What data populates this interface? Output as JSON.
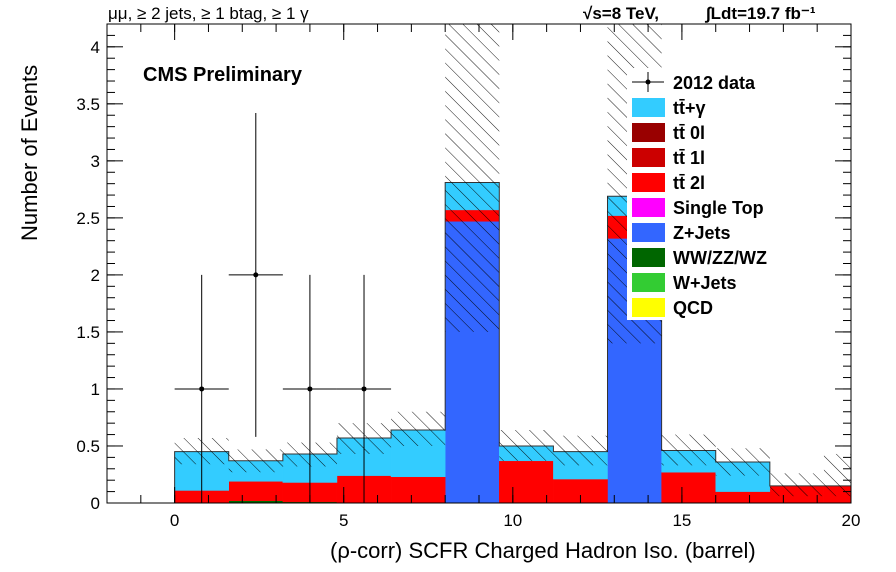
{
  "header": {
    "channel": "μμ, ≥ 2 jets, ≥ 1 btag, ≥ 1 γ",
    "energy": "√s=8 TeV,",
    "lumi": "∫Ldt=19.7 fb⁻¹"
  },
  "label": "CMS Preliminary",
  "chart_data": {
    "type": "bar",
    "subtype": "stacked-histogram",
    "xlabel": "(ρ-corr) SCFR Charged Hadron Iso. (barrel)",
    "ylabel": "Number of Events",
    "xlim": [
      -2,
      20
    ],
    "ylim": [
      0,
      4.2
    ],
    "x_ticks": [
      0,
      5,
      10,
      15,
      20
    ],
    "y_ticks": [
      0,
      0.5,
      1,
      1.5,
      2,
      2.5,
      3,
      3.5,
      4
    ],
    "y_tick_labels": [
      "0",
      "0.5",
      "1",
      "1.5",
      "2",
      "2.5",
      "3",
      "3.5",
      "4"
    ],
    "bin_edges": [
      0,
      1.6,
      3.2,
      4.8,
      6.4,
      8,
      9.6,
      11.2,
      12.8,
      14.4,
      16,
      17.6,
      19.2,
      20
    ],
    "stack": [
      {
        "name": "QCD",
        "color": "#ffff00",
        "values": [
          0,
          0,
          0,
          0,
          0,
          0,
          0,
          0,
          0,
          0,
          0,
          0,
          0
        ]
      },
      {
        "name": "W+Jets",
        "color": "#33cc33",
        "values": [
          0,
          0,
          0,
          0,
          0,
          0,
          0,
          0,
          0,
          0,
          0,
          0,
          0
        ]
      },
      {
        "name": "WW/ZZ/WZ",
        "color": "#006600",
        "values": [
          0,
          0.02,
          0.01,
          0,
          0,
          0,
          0,
          0,
          0,
          0,
          0,
          0,
          0
        ]
      },
      {
        "name": "Z+Jets",
        "color": "#3366ff",
        "values": [
          0,
          0,
          0,
          0,
          0,
          2.47,
          0,
          0,
          2.32,
          0,
          0,
          0,
          0
        ]
      },
      {
        "name": "Single Top",
        "color": "#ff00ff",
        "values": [
          0,
          0,
          0,
          0,
          0,
          0,
          0,
          0,
          0,
          0,
          0,
          0,
          0
        ]
      },
      {
        "name": "tt̄ 2l",
        "color": "#ff0000",
        "values": [
          0.11,
          0.17,
          0.17,
          0.24,
          0.23,
          0.1,
          0.37,
          0.21,
          0.2,
          0.27,
          0.1,
          0.15,
          0.15
        ]
      },
      {
        "name": "tt̄ 1l",
        "color": "#cc0000",
        "values": [
          0,
          0,
          0,
          0,
          0,
          0,
          0,
          0,
          0,
          0,
          0,
          0,
          0
        ]
      },
      {
        "name": "tt̄ 0l",
        "color": "#990000",
        "values": [
          0,
          0,
          0,
          0,
          0,
          0,
          0,
          0,
          0,
          0,
          0,
          0,
          0
        ]
      },
      {
        "name": "tt̄+γ",
        "color": "#33ccff",
        "values": [
          0.34,
          0.18,
          0.25,
          0.33,
          0.41,
          0.24,
          0.13,
          0.24,
          0.17,
          0.19,
          0.26,
          0,
          0
        ]
      }
    ],
    "uncertainty": [
      {
        "from": 0,
        "to": 1.6,
        "low": 0.34,
        "high": 0.57
      },
      {
        "from": 1.6,
        "to": 3.2,
        "low": 0.27,
        "high": 0.47
      },
      {
        "from": 3.2,
        "to": 4.8,
        "low": 0.32,
        "high": 0.53
      },
      {
        "from": 4.8,
        "to": 6.4,
        "low": 0.43,
        "high": 0.7
      },
      {
        "from": 6.4,
        "to": 8,
        "low": 0.5,
        "high": 0.8
      },
      {
        "from": 8,
        "to": 9.6,
        "low": 1.5,
        "high": 4.2
      },
      {
        "from": 9.6,
        "to": 11.2,
        "low": 0.37,
        "high": 0.64
      },
      {
        "from": 11.2,
        "to": 12.8,
        "low": 0.33,
        "high": 0.59
      },
      {
        "from": 12.8,
        "to": 14.4,
        "low": 1.4,
        "high": 4.2
      },
      {
        "from": 14.4,
        "to": 16,
        "low": 0.33,
        "high": 0.6
      },
      {
        "from": 16,
        "to": 17.6,
        "low": 0.24,
        "high": 0.48
      },
      {
        "from": 17.6,
        "to": 19.2,
        "low": 0.06,
        "high": 0.26
      },
      {
        "from": 19.2,
        "to": 20,
        "low": 0.06,
        "high": 0.43
      }
    ],
    "data_points": [
      {
        "x": 0.8,
        "y": 1,
        "xerr": 0.8,
        "ylow": 0,
        "yhigh": 2
      },
      {
        "x": 2.4,
        "y": 2,
        "xerr": 0.8,
        "ylow": 0.58,
        "yhigh": 3.42
      },
      {
        "x": 4.0,
        "y": 1,
        "xerr": 0.8,
        "ylow": 0,
        "yhigh": 2
      },
      {
        "x": 5.6,
        "y": 1,
        "xerr": 0.8,
        "ylow": 0,
        "yhigh": 2
      }
    ],
    "legend": {
      "position": "top-right",
      "entries": [
        {
          "label": "2012 data",
          "style": "marker",
          "color": "#000000"
        },
        {
          "label": "tt̄+γ",
          "style": "box",
          "color": "#33ccff"
        },
        {
          "label": "tt̄ 0l",
          "style": "box",
          "color": "#990000"
        },
        {
          "label": "tt̄ 1l",
          "style": "box",
          "color": "#cc0000"
        },
        {
          "label": "tt̄ 2l",
          "style": "box",
          "color": "#ff0000"
        },
        {
          "label": "Single Top",
          "style": "box",
          "color": "#ff00ff"
        },
        {
          "label": "Z+Jets",
          "style": "box",
          "color": "#3366ff"
        },
        {
          "label": "WW/ZZ/WZ",
          "style": "box",
          "color": "#006600"
        },
        {
          "label": "W+Jets",
          "style": "box",
          "color": "#33cc33"
        },
        {
          "label": "QCD",
          "style": "box",
          "color": "#ffff00"
        }
      ]
    }
  }
}
